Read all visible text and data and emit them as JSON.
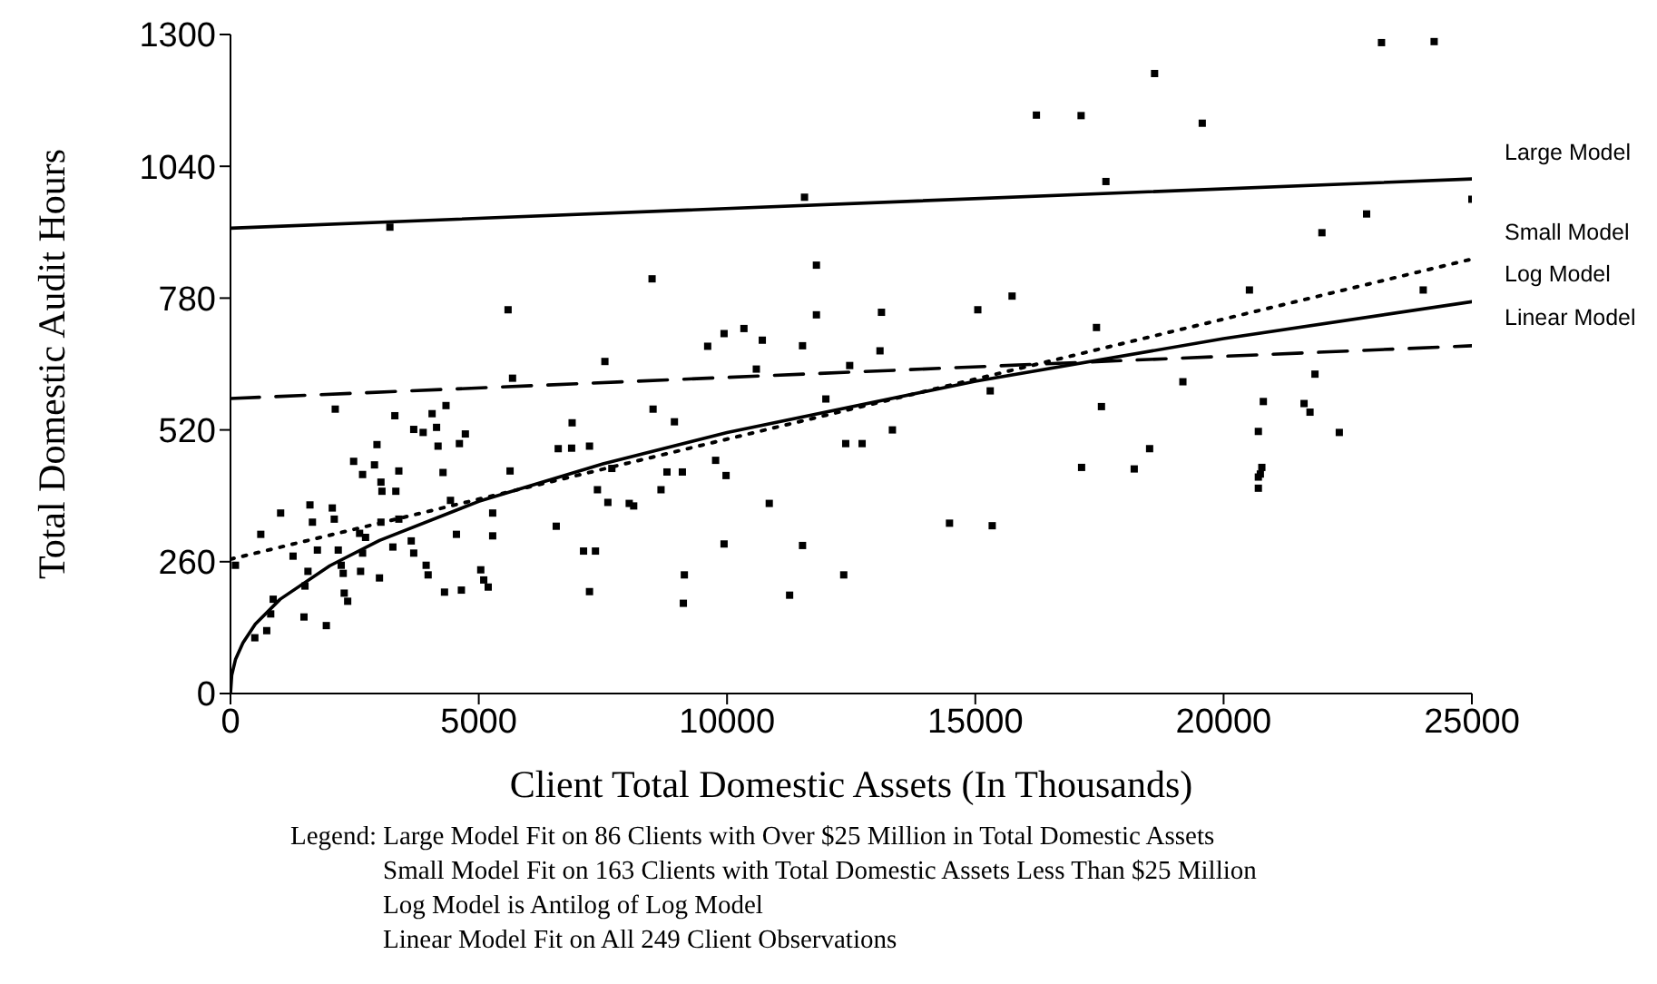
{
  "chart_data": {
    "type": "scatter",
    "xlabel": "Client Total Domestic Assets (In Thousands)",
    "ylabel": "Total Domestic Audit Hours",
    "xlim": [
      0,
      25000
    ],
    "xticks": [
      0,
      5000,
      10000,
      15000,
      20000,
      25000
    ],
    "ylim": [
      0,
      1300
    ],
    "yticks": [
      0,
      260,
      520,
      780,
      1040,
      1300
    ],
    "grid": false,
    "series": [
      {
        "color": "#000000",
        "marker": "square",
        "x": [
          2110,
          3310,
          3690,
          3880,
          4060,
          4340,
          4150,
          4180,
          4730,
          4610,
          2950,
          2480,
          2900,
          3390,
          2660,
          3030,
          3050,
          3330,
          4280,
          5630,
          6600,
          6870,
          6880,
          1010,
          1600,
          2050,
          1650,
          2090,
          3030,
          3390,
          610,
          2600,
          2720,
          3640,
          4430,
          5280,
          4550,
          5280,
          6560,
          100,
          1260,
          1750,
          2170,
          2230,
          2660,
          3270,
          3690,
          3940,
          1560,
          2270,
          2620,
          3000,
          3980,
          5040,
          5100,
          5190,
          4310,
          4650,
          2290,
          2360,
          1500,
          860,
          810,
          1480,
          1930,
          490,
          730,
          5680,
          11560,
          11800,
          8490,
          11800,
          13110,
          9940,
          10340,
          9610,
          10710,
          11520,
          13080,
          7540,
          10590,
          12470,
          11990,
          8510,
          8940,
          7230,
          13330,
          12390,
          12720,
          7680,
          9770,
          9980,
          8790,
          9100,
          7390,
          8670,
          7600,
          8030,
          8120,
          10850,
          7110,
          7350,
          9940,
          11520,
          7230,
          9140,
          9120,
          11260,
          12350,
          17630,
          15740,
          15050,
          17440,
          15300,
          19180,
          17540,
          18510,
          17140,
          18200,
          14480,
          15340,
          16230,
          17130,
          18610,
          19570,
          23180,
          24240,
          22880,
          25000,
          21980,
          20520,
          24020,
          21840,
          20800,
          21620,
          21740,
          20700,
          22330,
          20770,
          20740,
          20700,
          20700,
          3210,
          5590
        ],
        "values": [
          561,
          548,
          521,
          515,
          552,
          568,
          525,
          488,
          512,
          493,
          491,
          458,
          451,
          439,
          432,
          417,
          399,
          399,
          436,
          439,
          483,
          484,
          534,
          356,
          372,
          366,
          338,
          344,
          338,
          344,
          314,
          316,
          308,
          301,
          381,
          356,
          314,
          311,
          330,
          253,
          271,
          283,
          283,
          253,
          277,
          289,
          277,
          253,
          241,
          237,
          241,
          228,
          234,
          244,
          224,
          210,
          200,
          204,
          198,
          182,
          212,
          186,
          157,
          151,
          134,
          110,
          124,
          622,
          979,
          845,
          818,
          747,
          752,
          710,
          720,
          685,
          697,
          686,
          676,
          655,
          640,
          647,
          581,
          561,
          536,
          488,
          520,
          493,
          493,
          444,
          460,
          430,
          437,
          437,
          402,
          402,
          377,
          375,
          370,
          375,
          281,
          281,
          295,
          292,
          201,
          234,
          178,
          194,
          234,
          1010,
          784,
          757,
          722,
          597,
          615,
          566,
          483,
          446,
          443,
          336,
          331,
          1141,
          1140,
          1223,
          1125,
          1284,
          1286,
          946,
          975,
          909,
          796,
          796,
          630,
          576,
          572,
          555,
          517,
          515,
          446,
          433,
          427,
          405,
          920,
          757
        ]
      },
      {
        "type": "line",
        "name": "Large Model",
        "color": "#000000",
        "line_style": "solid",
        "x": [
          0,
          25000
        ],
        "values": [
          918,
          1015
        ]
      },
      {
        "type": "line",
        "name": "Small Model",
        "color": "#000000",
        "line_style": "dotted",
        "x": [
          0,
          25000
        ],
        "values": [
          265,
          857
        ]
      },
      {
        "type": "line",
        "name": "Log Model",
        "color": "#000000",
        "line_style": "solid",
        "x": [
          0,
          25,
          100,
          250,
          500,
          1000,
          2000,
          3000,
          5000,
          7500,
          10000,
          15000,
          20000,
          25000
        ],
        "values": [
          0,
          36,
          67,
          100,
          137,
          186,
          252,
          302,
          379,
          453,
          515,
          616,
          700,
          773
        ]
      },
      {
        "type": "line",
        "name": "Linear Model",
        "color": "#000000",
        "line_style": "dashed",
        "x": [
          0,
          25000
        ],
        "values": [
          582,
          686
        ]
      }
    ],
    "annotations": [
      "Legend: Large Model Fit on 86 Clients with Over $25 Million in Total Domestic Assets",
      "Small Model Fit on 163 Clients with Total Domestic Assets Less Than $25 Million",
      "Log Model is Antilog of Log Model",
      "Linear Model Fit on All 249 Client Observations"
    ]
  }
}
